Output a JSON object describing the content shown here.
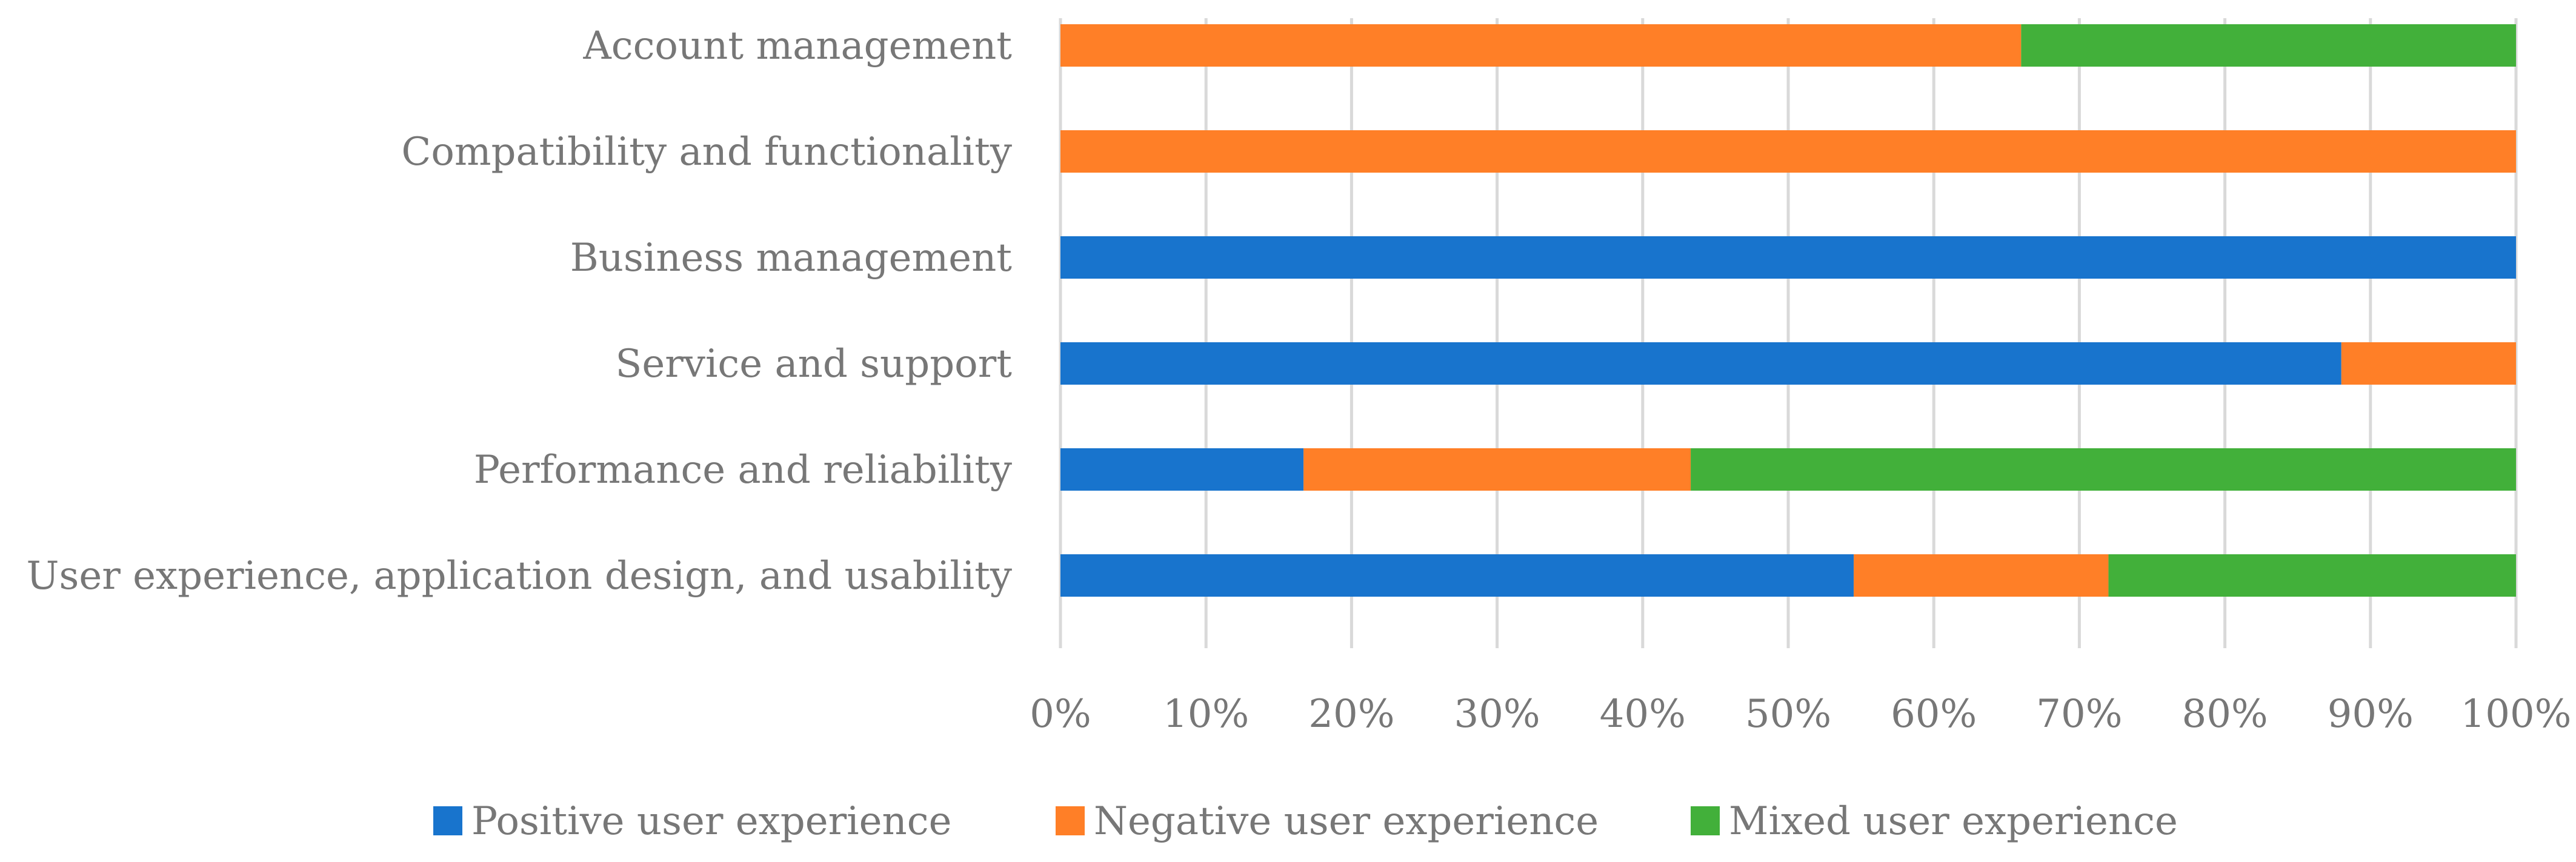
{
  "chart_data": {
    "type": "bar",
    "orientation": "horizontal",
    "stacked": "percent",
    "title": "",
    "xlabel": "",
    "ylabel": "",
    "xlim": [
      0,
      100
    ],
    "grid": true,
    "legend_position": "bottom",
    "categories": [
      "Account management",
      "Compatibility and functionality",
      "Business management",
      "Service and support",
      "Performance and reliability",
      "User experience, application design, and usability"
    ],
    "x_ticks": [
      "0%",
      "10%",
      "20%",
      "30%",
      "40%",
      "50%",
      "60%",
      "70%",
      "80%",
      "90%",
      "100%"
    ],
    "series": [
      {
        "name": "Positive user experience",
        "color": "#1874CD",
        "values": [
          0,
          0,
          100,
          88,
          16.7,
          54.5
        ]
      },
      {
        "name": "Negative user experience",
        "color": "#FF7F27",
        "values": [
          66,
          100,
          0,
          12,
          26.6,
          17.5
        ]
      },
      {
        "name": "Mixed user experience",
        "color": "#42B03A",
        "values": [
          34,
          0,
          0,
          0,
          56.7,
          28
        ]
      }
    ]
  }
}
